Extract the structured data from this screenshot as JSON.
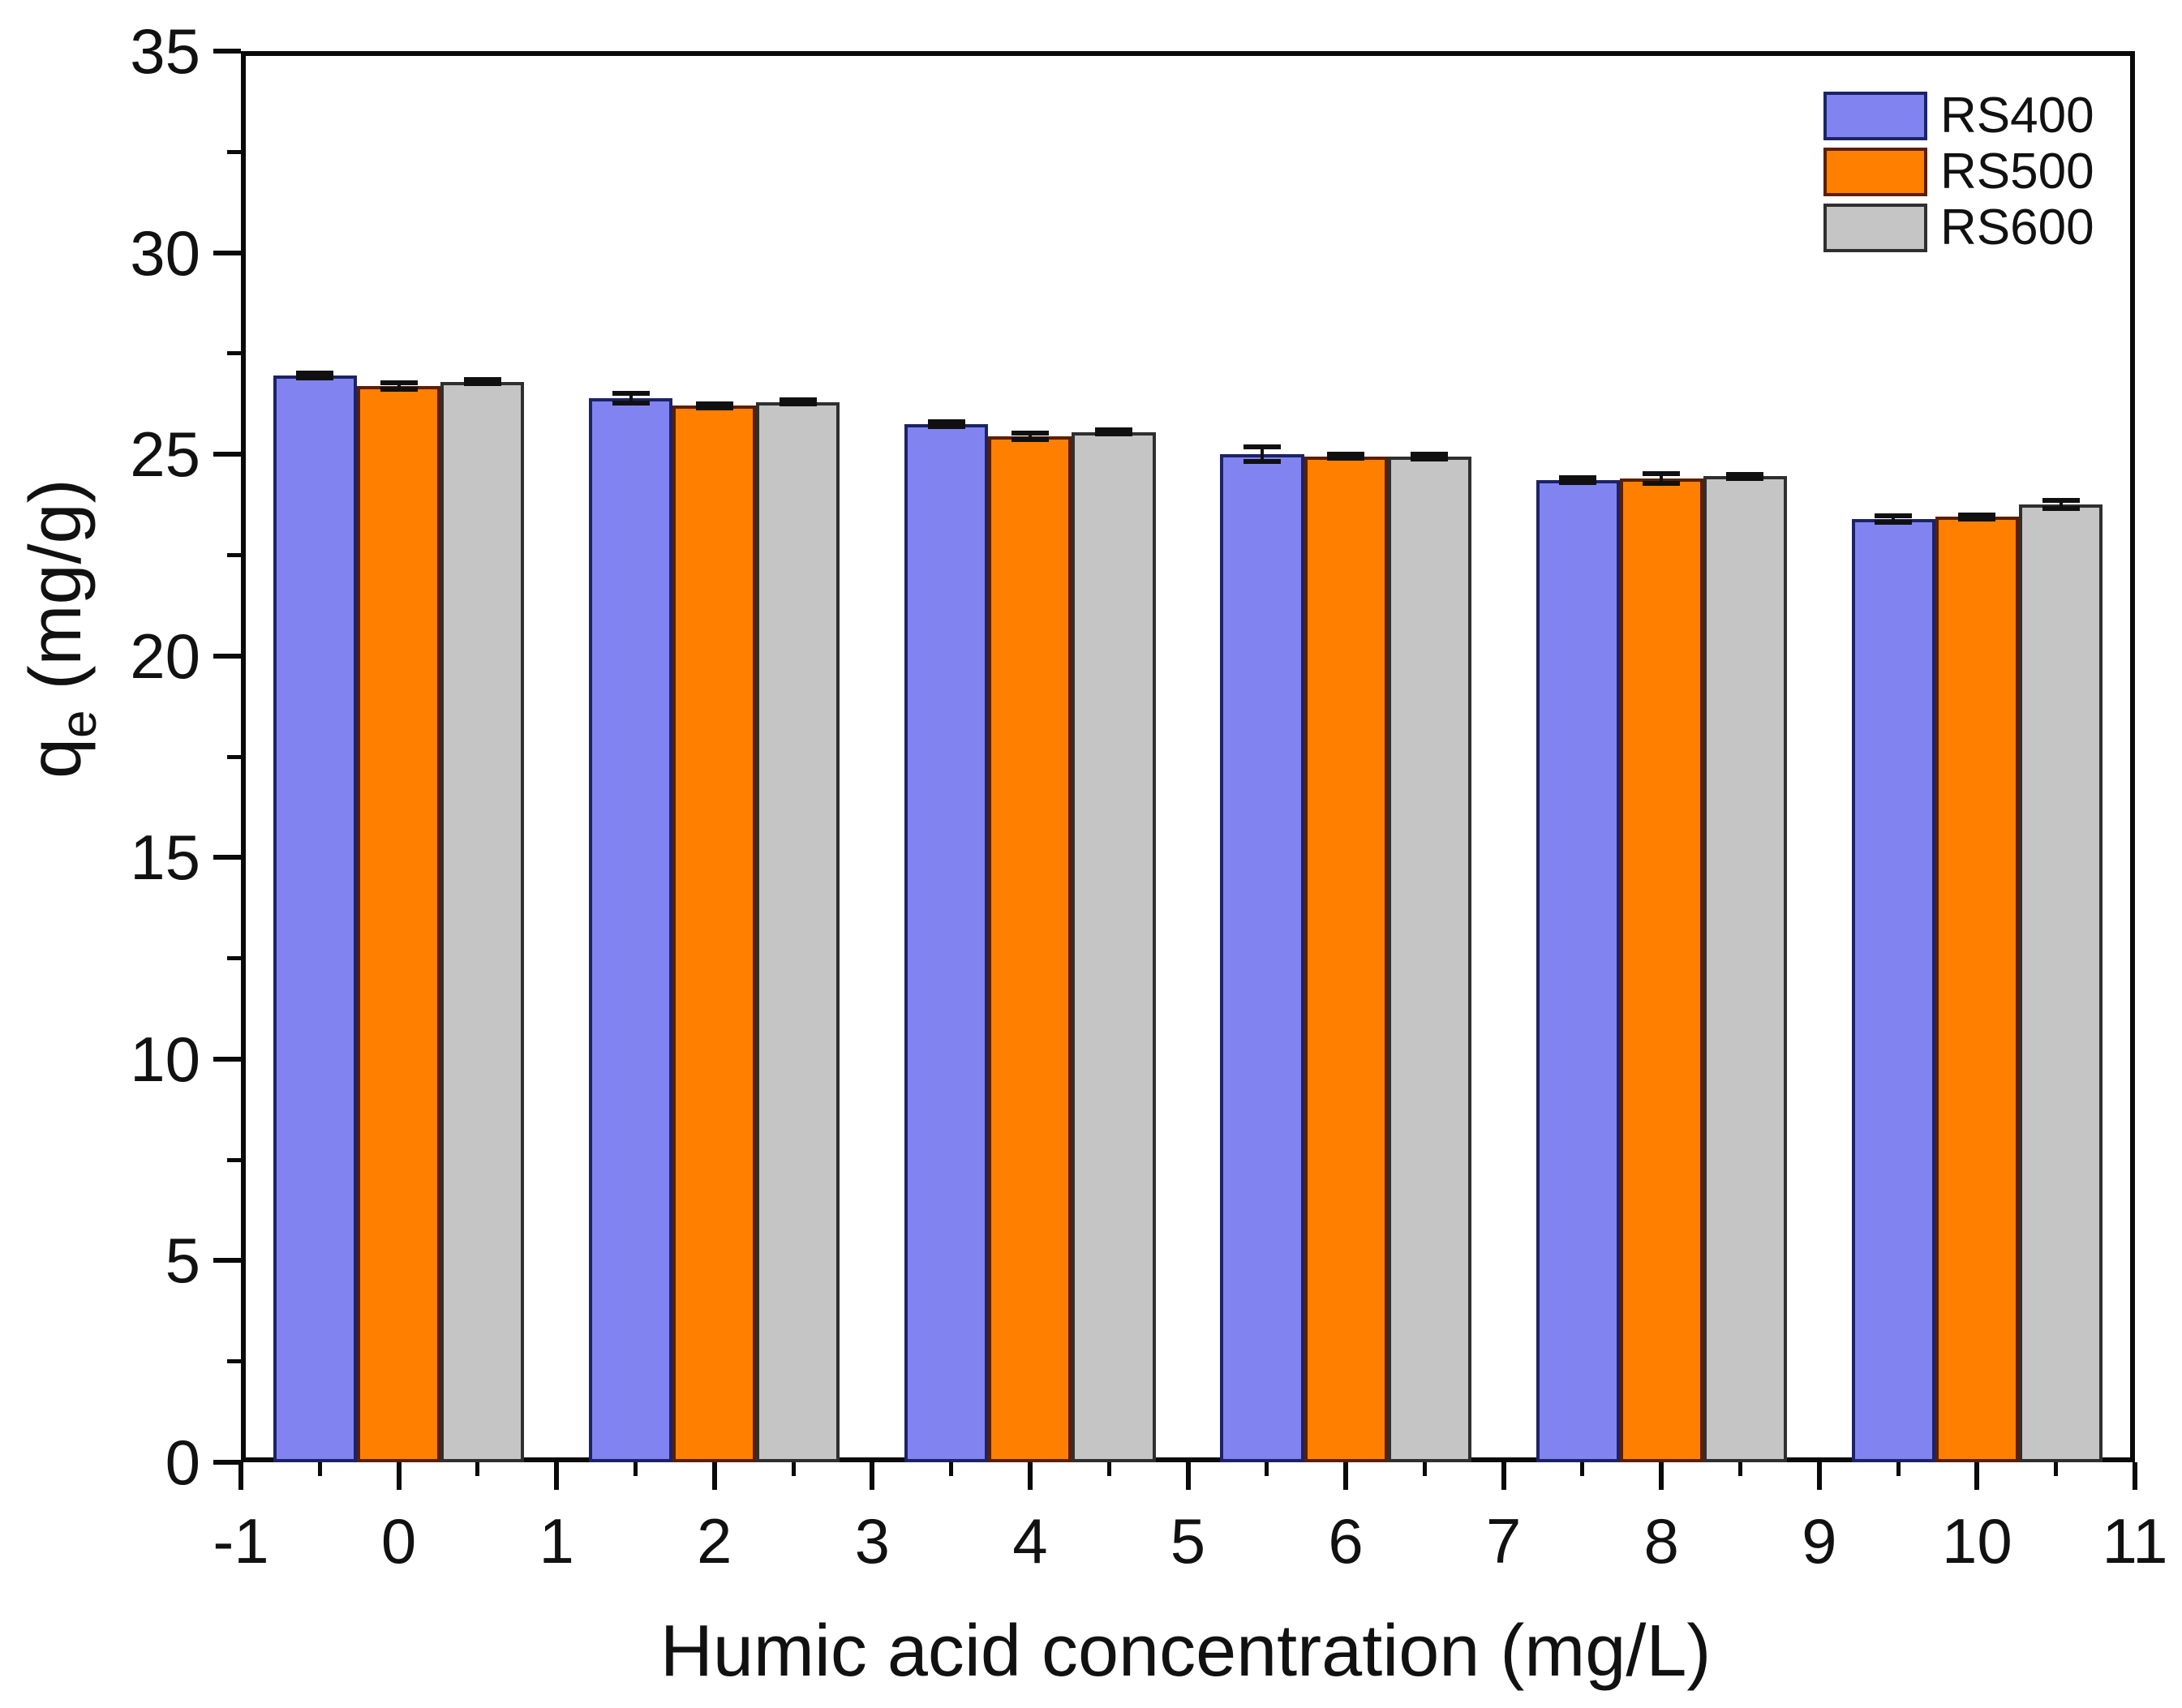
{
  "chart_data": {
    "type": "bar",
    "title": "",
    "xlabel": "Humic acid concentration (mg/L)",
    "ylabel": "qe (mg/g)",
    "ylabel_parts": {
      "base": "q",
      "sub": "e",
      "rest": " (mg/g)"
    },
    "categories": [
      0,
      2,
      4,
      6,
      8,
      10
    ],
    "series": [
      {
        "name": "RS400",
        "fill": "#8184F0",
        "border": "#1C2366",
        "values": [
          26.95,
          26.4,
          25.75,
          25.0,
          24.35,
          23.4
        ],
        "errors": [
          0.06,
          0.12,
          0.06,
          0.18,
          0.06,
          0.08
        ]
      },
      {
        "name": "RS500",
        "fill": "#FF8000",
        "border": "#5B1F00",
        "values": [
          26.7,
          26.2,
          25.45,
          24.95,
          24.4,
          23.45
        ],
        "errors": [
          0.08,
          0.05,
          0.08,
          0.05,
          0.12,
          0.05
        ]
      },
      {
        "name": "RS600",
        "fill": "#C5C5C5",
        "border": "#2F2F2F",
        "values": [
          26.8,
          26.3,
          25.55,
          24.95,
          24.45,
          23.75
        ],
        "errors": [
          0.05,
          0.05,
          0.05,
          0.06,
          0.06,
          0.1
        ]
      }
    ],
    "xlim": [
      -1,
      11
    ],
    "ylim": [
      0,
      35
    ],
    "x_major_ticks": [
      -1,
      0,
      1,
      2,
      3,
      4,
      5,
      6,
      7,
      8,
      9,
      10,
      11
    ],
    "y_major_ticks": [
      0,
      5,
      10,
      15,
      20,
      25,
      30,
      35
    ],
    "x_minor_step": 0.5,
    "y_minor_step": 2.5,
    "bar_width_units": 0.53,
    "grid": false,
    "legend_position": "top-right",
    "error_bar_color": "#101010",
    "frame_color": "#0a0a0a"
  }
}
